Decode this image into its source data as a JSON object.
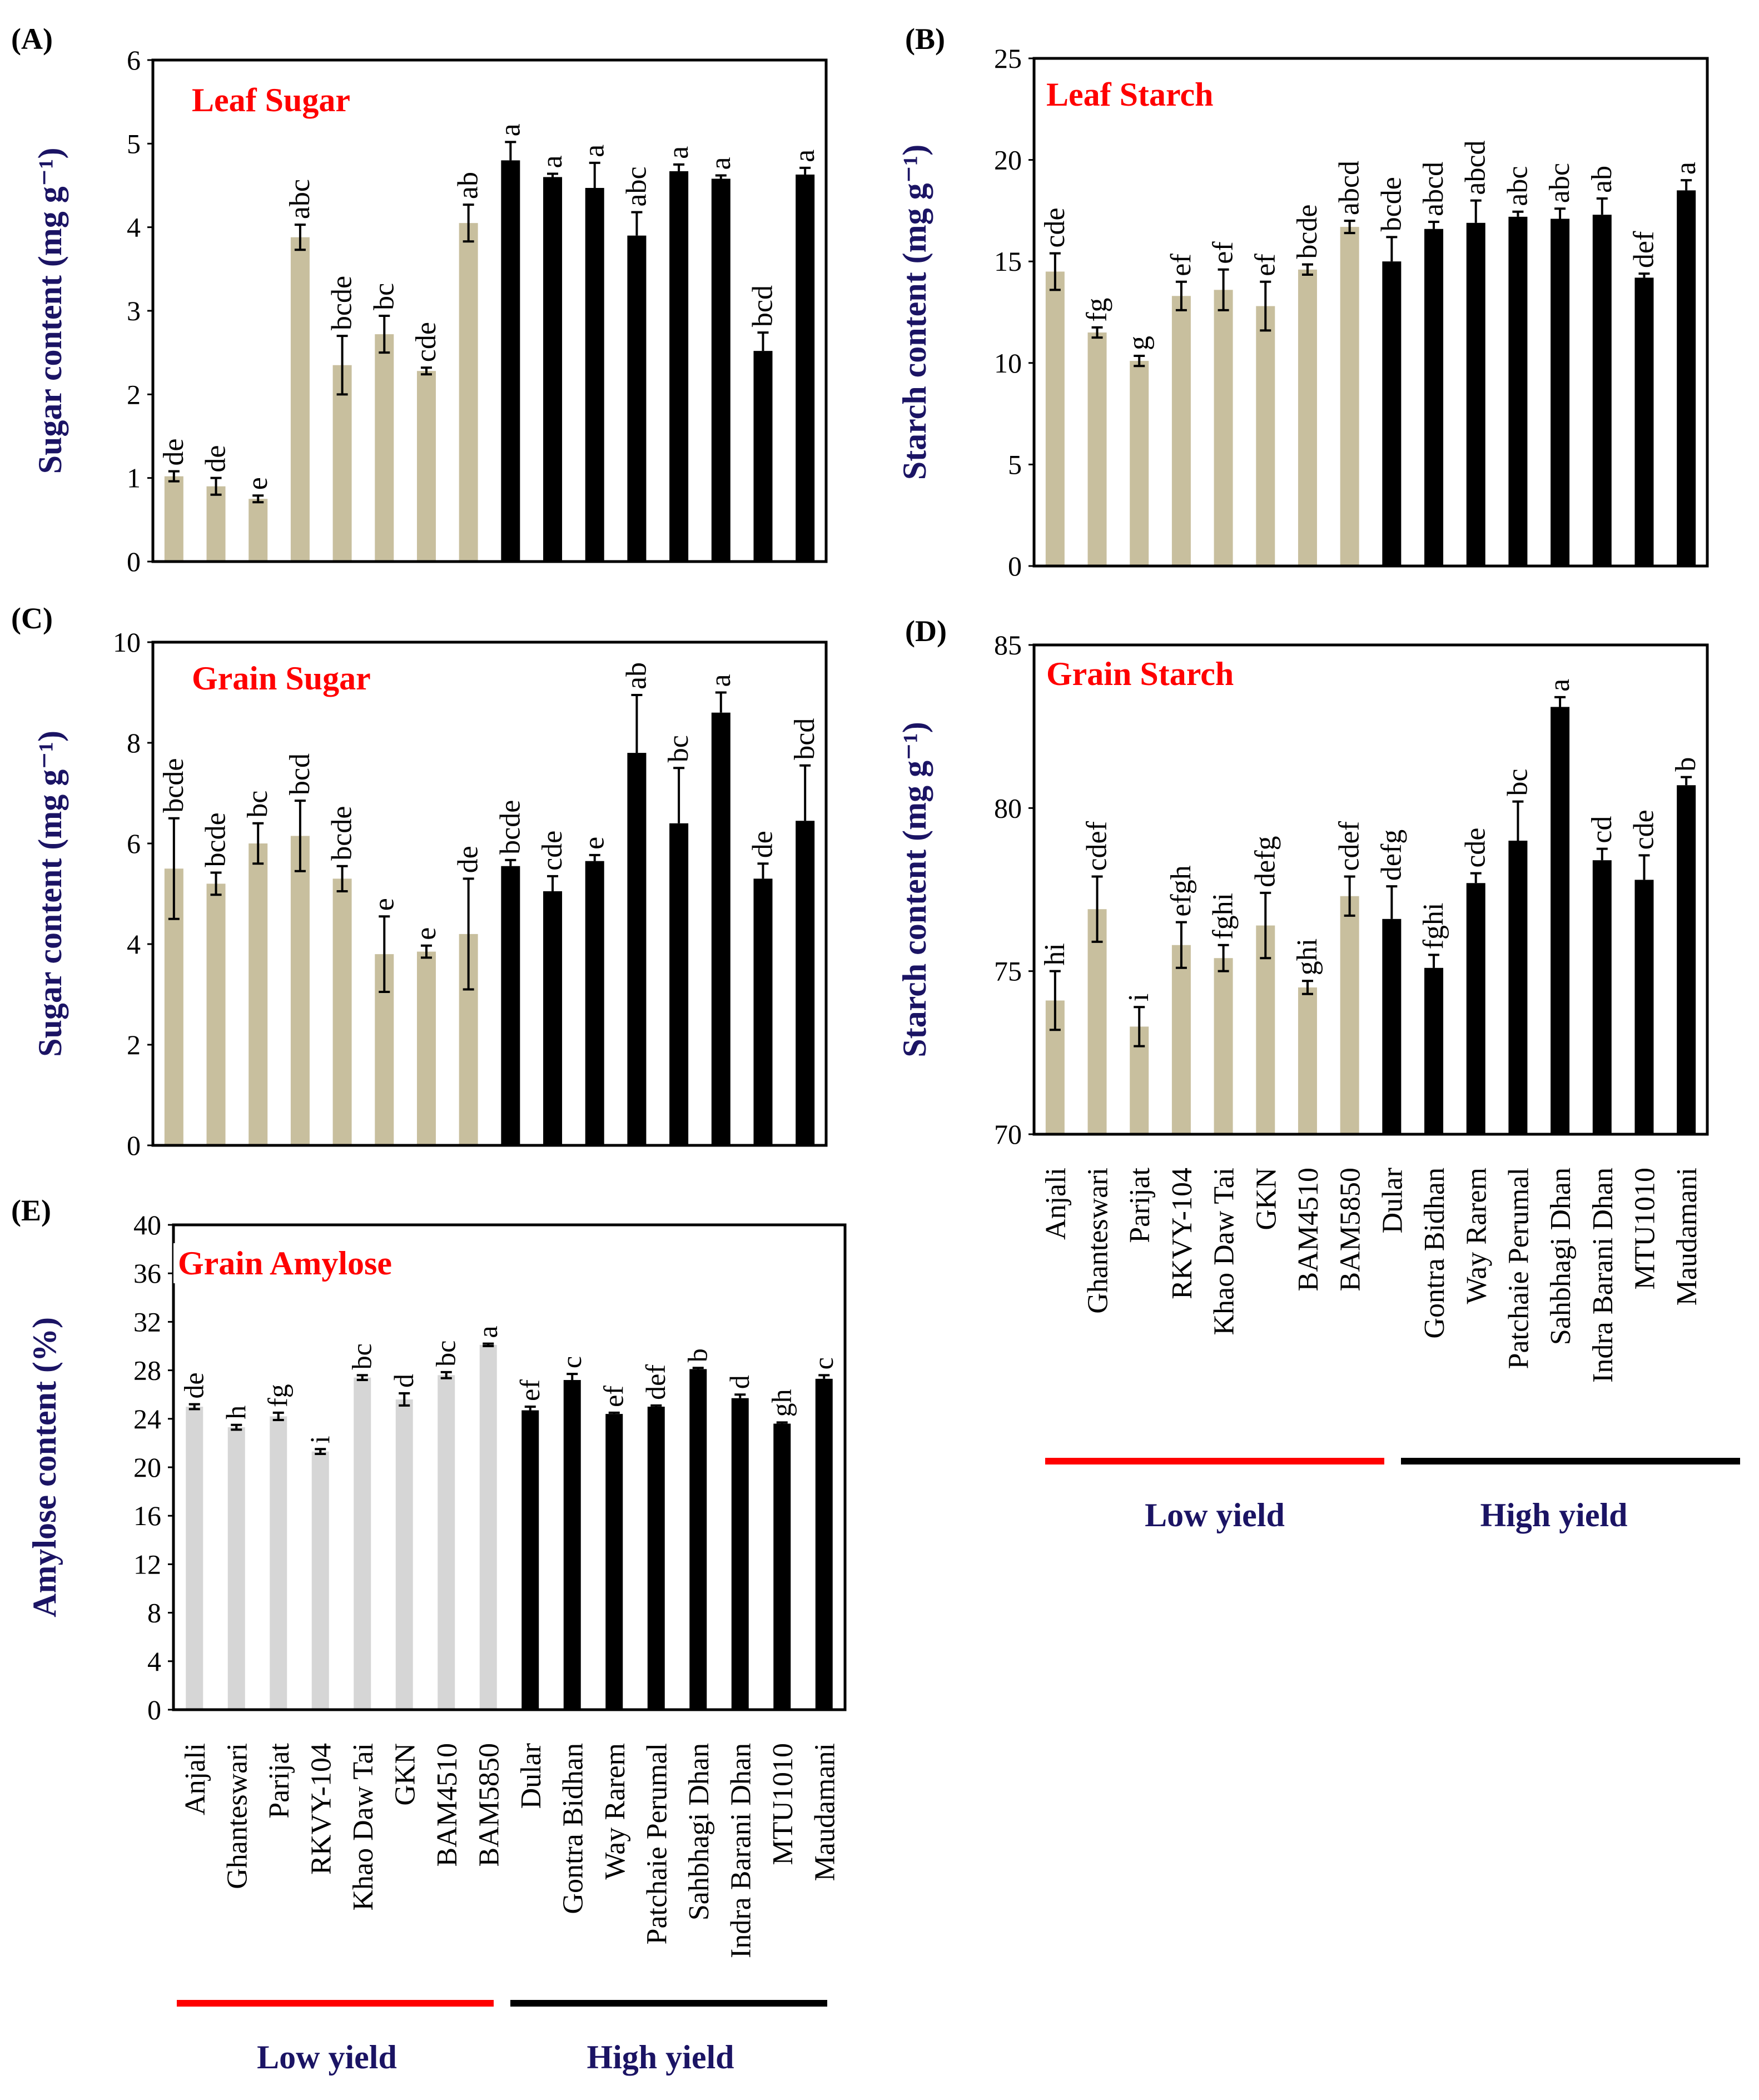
{
  "figure": {
    "colors": {
      "low": "#c8bf9e",
      "low_e": "#d6d6d6",
      "high": "#000000",
      "title": "#ff0000",
      "ylabel": "#1b1464",
      "line_low": "#ff0000",
      "line_high": "#000000"
    },
    "groups": {
      "low": "Low yield",
      "high": "High yield"
    }
  },
  "chart_data": [
    {
      "panel": "(A)",
      "type": "bar",
      "title": "Leaf Sugar",
      "ylabel": "Sugar content  (mg g⁻¹)",
      "ylim": [
        0,
        6
      ],
      "yticks": [
        0,
        1,
        2,
        3,
        4,
        5,
        6
      ],
      "categories": [
        "Anjali",
        "Ghanteswari",
        "Parijat",
        "RKVY-104",
        "Khao Daw Tai",
        "GKN",
        "BAM4510",
        "BAM5850",
        "Dular",
        "Gontra Bidhan",
        "Way Rarem",
        "Patchaie Perumal",
        "Sahbhagi Dhan",
        "Indra Barani Dhan",
        "MTU1010",
        "Maudamani"
      ],
      "values": [
        1.02,
        0.9,
        0.75,
        3.88,
        2.35,
        2.72,
        2.28,
        4.05,
        4.8,
        4.6,
        4.47,
        3.9,
        4.67,
        4.58,
        2.52,
        4.63
      ],
      "errors": [
        0.06,
        0.1,
        0.04,
        0.15,
        0.35,
        0.22,
        0.04,
        0.22,
        0.22,
        0.04,
        0.3,
        0.28,
        0.08,
        0.04,
        0.22,
        0.08
      ],
      "letters": [
        "de",
        "de",
        "e",
        "abc",
        "bcde",
        "bc",
        "cde",
        "ab",
        "a",
        "a",
        "a",
        "abc",
        "a",
        "a",
        "bcd",
        "a"
      ],
      "groups": [
        "Low yield",
        "High yield"
      ]
    },
    {
      "panel": "(B)",
      "type": "bar",
      "title": "Leaf Starch",
      "ylabel": "Starch content  (mg g⁻¹)",
      "ylim": [
        0,
        25
      ],
      "yticks": [
        0,
        5,
        10,
        15,
        20,
        25
      ],
      "categories": [
        "Anjali",
        "Ghanteswari",
        "Parijat",
        "RKVY-104",
        "Khao Daw Tai",
        "GKN",
        "BAM4510",
        "BAM5850",
        "Dular",
        "Gontra Bidhan",
        "Way Rarem",
        "Patchaie Perumal",
        "Sahbhagi Dhan",
        "Indra Barani Dhan",
        "MTU1010",
        "Maudamani"
      ],
      "values": [
        14.5,
        11.5,
        10.1,
        13.3,
        13.6,
        12.8,
        14.6,
        16.7,
        15.0,
        16.6,
        16.9,
        17.2,
        17.1,
        17.3,
        14.2,
        18.5
      ],
      "errors": [
        0.9,
        0.25,
        0.25,
        0.7,
        1.0,
        1.2,
        0.25,
        0.3,
        1.2,
        0.35,
        1.1,
        0.25,
        0.5,
        0.8,
        0.2,
        0.5
      ],
      "letters": [
        "cde",
        "fg",
        "g",
        "ef",
        "ef",
        "ef",
        "bcde",
        "abcd",
        "bcde",
        "abcd",
        "abcd",
        "abc",
        "abc",
        "ab",
        "def",
        "a"
      ],
      "groups": [
        "Low yield",
        "High yield"
      ]
    },
    {
      "panel": "(C)",
      "type": "bar",
      "title": "Grain Sugar",
      "ylabel": "Sugar content  (mg g⁻¹)",
      "ylim": [
        0,
        10
      ],
      "yticks": [
        0,
        2,
        4,
        6,
        8,
        10
      ],
      "categories": [
        "Anjali",
        "Ghanteswari",
        "Parijat",
        "RKVY-104",
        "Khao Daw Tai",
        "GKN",
        "BAM4510",
        "BAM5850",
        "Dular",
        "Gontra Bidhan",
        "Way Rarem",
        "Patchaie Perumal",
        "Sahbhagi Dhan",
        "Indra Barani Dhan",
        "MTU1010",
        "Maudamani"
      ],
      "values": [
        5.5,
        5.2,
        6.0,
        6.15,
        5.3,
        3.8,
        3.85,
        4.2,
        5.55,
        5.05,
        5.65,
        7.8,
        6.4,
        8.6,
        5.3,
        6.45
      ],
      "errors": [
        1.0,
        0.22,
        0.4,
        0.7,
        0.25,
        0.75,
        0.12,
        1.1,
        0.12,
        0.3,
        0.12,
        1.15,
        1.1,
        0.4,
        0.3,
        1.1
      ],
      "letters": [
        "bcde",
        "bcde",
        "bc",
        "bcd",
        "bcde",
        "e",
        "e",
        "de",
        "bcde",
        "cde",
        "e",
        "ab",
        "bc",
        "a",
        "de",
        "bcd"
      ],
      "groups": [
        "Low yield",
        "High yield"
      ]
    },
    {
      "panel": "(D)",
      "type": "bar",
      "title": "Grain Starch",
      "ylabel": "Starch content  (mg g⁻¹)",
      "ylim": [
        70,
        85
      ],
      "yticks": [
        70,
        75,
        80,
        85
      ],
      "categories": [
        "Anjali",
        "Ghanteswari",
        "Parijat",
        "RKVY-104",
        "Khao Daw Tai",
        "GKN",
        "BAM4510",
        "BAM5850",
        "Dular",
        "Gontra Bidhan",
        "Way Rarem",
        "Patchaie Perumal",
        "Sahbhagi Dhan",
        "Indra Barani Dhan",
        "MTU1010",
        "Maudamani"
      ],
      "values": [
        74.1,
        76.9,
        73.3,
        75.8,
        75.4,
        76.4,
        74.5,
        77.3,
        76.6,
        75.1,
        77.7,
        79.0,
        83.1,
        78.4,
        77.8,
        80.7
      ],
      "errors": [
        0.9,
        1.0,
        0.6,
        0.7,
        0.4,
        1.0,
        0.2,
        0.6,
        1.0,
        0.4,
        0.3,
        1.2,
        0.3,
        0.35,
        0.75,
        0.25
      ],
      "letters": [
        "hi",
        "cdef",
        "i",
        "efgh",
        "fghi",
        "defg",
        "ghi",
        "cdef",
        "defg",
        "fghi",
        "cde",
        "bc",
        "a",
        "cd",
        "cde",
        "b"
      ],
      "groups": [
        "Low yield",
        "High yield"
      ]
    },
    {
      "panel": "(E)",
      "type": "bar",
      "title": "Grain Amylose",
      "ylabel": "Amylose content (%)",
      "ylim": [
        0,
        40
      ],
      "yticks": [
        0,
        4,
        8,
        12,
        16,
        20,
        24,
        28,
        32,
        36,
        40
      ],
      "categories": [
        "Anjali",
        "Ghanteswari",
        "Parijat",
        "RKVY-104",
        "Khao Daw Tai",
        "GKN",
        "BAM4510",
        "BAM5850",
        "Dular",
        "Gontra Bidhan",
        "Way Rarem",
        "Patchaie Perumal",
        "Sahbhagi Dhan",
        "Indra Barani Dhan",
        "MTU1010",
        "Maudamani"
      ],
      "values": [
        25.0,
        23.3,
        24.2,
        21.3,
        27.4,
        25.6,
        27.6,
        30.1,
        24.7,
        27.2,
        24.4,
        25.0,
        28.1,
        25.7,
        23.6,
        27.3
      ],
      "errors": [
        0.2,
        0.2,
        0.3,
        0.2,
        0.2,
        0.5,
        0.25,
        0.1,
        0.3,
        0.5,
        0.1,
        0.1,
        0.1,
        0.3,
        0.1,
        0.3
      ],
      "letters": [
        "de",
        "h",
        "fg",
        "i",
        "bc",
        "d",
        "bc",
        "a",
        "ef",
        "c",
        "ef",
        "def",
        "b",
        "d",
        "gh",
        "c"
      ],
      "groups": [
        "Low yield",
        "High yield"
      ]
    }
  ]
}
